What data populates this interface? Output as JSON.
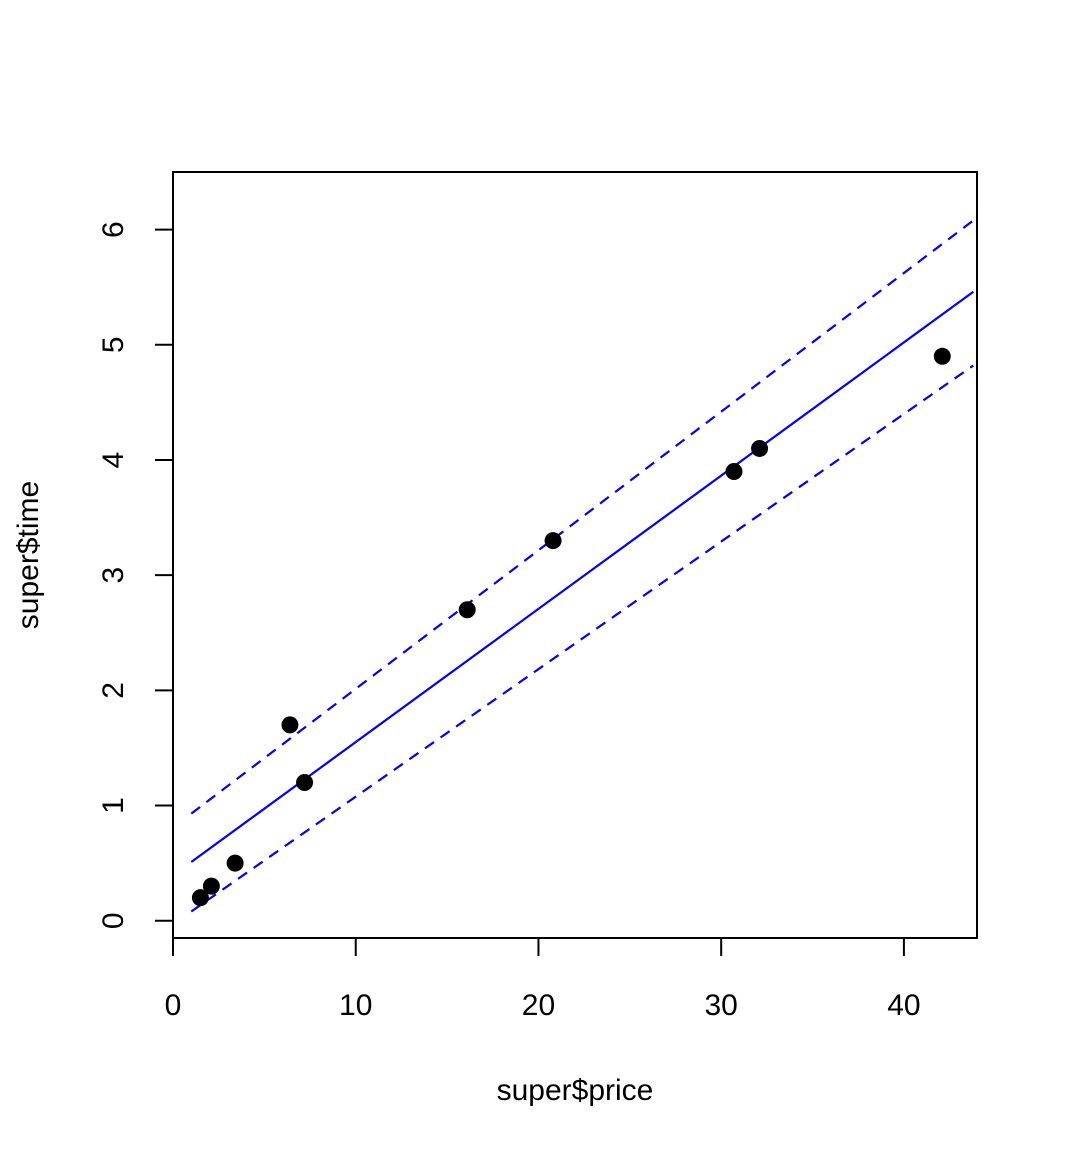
{
  "chart_data": {
    "type": "scatter",
    "title": "",
    "xlabel": "super$price",
    "ylabel": "super$time",
    "xlim": [
      0,
      44
    ],
    "ylim": [
      -0.15,
      6.5
    ],
    "xticks": [
      0,
      10,
      20,
      30,
      40
    ],
    "xtick_labels": [
      "0",
      "10",
      "20",
      "30",
      "40"
    ],
    "yticks": [
      0,
      1,
      2,
      3,
      4,
      5,
      6
    ],
    "ytick_labels": [
      "0",
      "1",
      "2",
      "3",
      "4",
      "5",
      "6"
    ],
    "grid": false,
    "points": {
      "x": [
        1.5,
        2.1,
        3.4,
        6.4,
        7.2,
        16.1,
        20.8,
        30.7,
        32.1,
        42.1
      ],
      "y": [
        0.2,
        0.3,
        0.5,
        1.7,
        1.2,
        2.7,
        3.3,
        3.9,
        4.1,
        4.9
      ],
      "color": "#000000"
    },
    "lines": [
      {
        "role": "fit",
        "style": "solid",
        "color": "#0000ff",
        "x": [
          1.0,
          43.8
        ],
        "y": [
          0.51,
          5.46
        ]
      },
      {
        "role": "upper-band",
        "style": "dashed",
        "color": "#0000ff",
        "x": [
          1.0,
          43.8
        ],
        "y": [
          0.93,
          6.08
        ]
      },
      {
        "role": "lower-band",
        "style": "dashed",
        "color": "#0000ff",
        "x": [
          1.0,
          43.8
        ],
        "y": [
          0.08,
          4.82
        ]
      }
    ]
  }
}
